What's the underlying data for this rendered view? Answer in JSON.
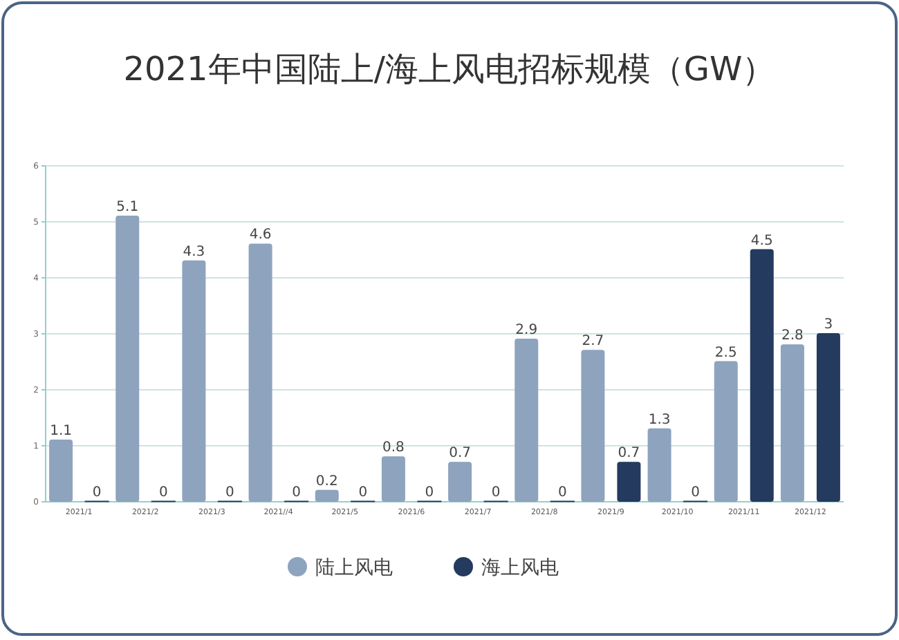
{
  "chart_data": {
    "type": "bar",
    "title": "2021年中国陆上/海上风电招标规模（GW）",
    "categories": [
      "2021/1",
      "2021/2",
      "2021/3",
      "2021//4",
      "2021/5",
      "2021/6",
      "2021/7",
      "2021/8",
      "2021/9",
      "2021/10",
      "2021/11",
      "2021/12"
    ],
    "series": [
      {
        "name": "陆上风电",
        "color": "#8ea3bd",
        "values": [
          1.1,
          5.1,
          4.3,
          4.6,
          0.2,
          0.8,
          0.7,
          2.9,
          2.7,
          1.3,
          2.5,
          2.8
        ]
      },
      {
        "name": "海上风电",
        "color": "#243a5e",
        "values": [
          0,
          0,
          0,
          0,
          0,
          0,
          0,
          0,
          0.7,
          0,
          4.5,
          3
        ]
      }
    ],
    "ylim": [
      0,
      6
    ],
    "yticks": [
      0,
      1,
      2,
      3,
      4,
      5,
      6
    ],
    "grid": "y",
    "legend": "bottom",
    "data_labels": true
  }
}
